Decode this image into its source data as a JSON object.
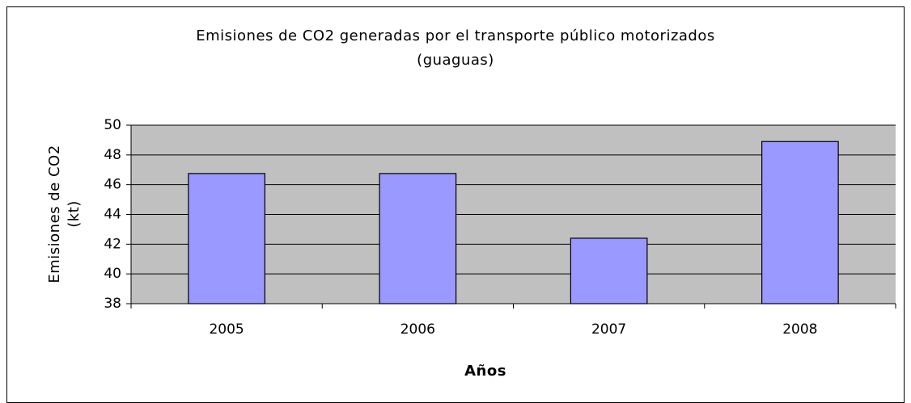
{
  "chart_data": {
    "type": "bar",
    "title": [
      "Emisiones de CO2 generadas por el transporte público motorizados",
      "(guaguas)"
    ],
    "y_label": [
      "Emisiones de CO2",
      "(kt)"
    ],
    "x_label": "Años",
    "categories": [
      "2005",
      "2006",
      "2007",
      "2008"
    ],
    "values": [
      46.75,
      46.75,
      42.4,
      48.9
    ],
    "color": "#9999ff",
    "ylim": [
      38,
      50
    ],
    "yticks": [
      38,
      40,
      42,
      44,
      46,
      48,
      50
    ],
    "grid": true
  }
}
